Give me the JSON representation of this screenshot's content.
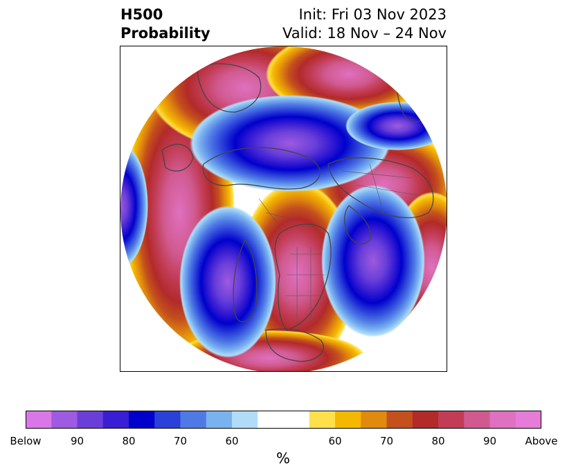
{
  "title": {
    "left_line1": "H500",
    "left_line2": "Probability",
    "right_line1": "Init: Fri 03 Nov 2023",
    "right_line2": "Valid: 18 Nov – 24 Nov"
  },
  "colorbar": {
    "unit": "%",
    "tick_labels": [
      "Below",
      "90",
      "80",
      "70",
      "60",
      "60",
      "70",
      "80",
      "90",
      "Above"
    ],
    "colors": [
      "#d977e8",
      "#9e5ae0",
      "#6a3fd9",
      "#3a1ed4",
      "#0000cc",
      "#2a40d9",
      "#4f7ae6",
      "#7ab2f0",
      "#b0dcfa",
      "#ffffff",
      "#ffffff",
      "#ffe04a",
      "#f5b800",
      "#e08a0e",
      "#c4501c",
      "#b22a2a",
      "#c23c55",
      "#d05a90",
      "#e070c0",
      "#e67bd8"
    ]
  },
  "map": {
    "region": "Northern Hemisphere polar stereographic",
    "below_color": "#0000cc",
    "above_color": "#c23c55",
    "outline_color": "#444444"
  }
}
